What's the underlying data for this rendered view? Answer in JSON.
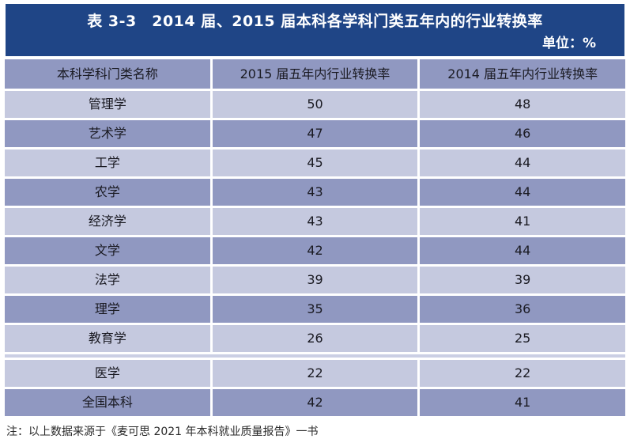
{
  "title_bar": {
    "title": "表 3-3　2014 届、2015 届本科各学科门类五年内的行业转换率",
    "unit": "单位：%"
  },
  "table": {
    "headers": [
      "本科学科门类名称",
      "2015 届五年内行业转换率",
      "2014 届五年内行业转换率"
    ],
    "rows": [
      {
        "category": "管理学",
        "rate_2015": "50",
        "rate_2014": "48"
      },
      {
        "category": "艺术学",
        "rate_2015": "47",
        "rate_2014": "46"
      },
      {
        "category": "工学",
        "rate_2015": "45",
        "rate_2014": "44"
      },
      {
        "category": "农学",
        "rate_2015": "43",
        "rate_2014": "44"
      },
      {
        "category": "经济学",
        "rate_2015": "43",
        "rate_2014": "41"
      },
      {
        "category": "文学",
        "rate_2015": "42",
        "rate_2014": "44"
      },
      {
        "category": "法学",
        "rate_2015": "39",
        "rate_2014": "39"
      },
      {
        "category": "理学",
        "rate_2015": "35",
        "rate_2014": "36"
      },
      {
        "category": "教育学",
        "rate_2015": "26",
        "rate_2014": "25"
      },
      {
        "category": "医学",
        "rate_2015": "22",
        "rate_2014": "22"
      },
      {
        "category": "全国本科",
        "rate_2015": "42",
        "rate_2014": "41"
      }
    ]
  },
  "footnote": "注：以上数据来源于《麦可思 2021 年本科就业质量报告》一书",
  "colors": {
    "title_bg": "#1f4586",
    "header_bg": "#9098c1",
    "row_dark": "#9098c1",
    "row_light": "#c5c9df",
    "divider_strip": "#cbcfe4"
  },
  "chart_data": {
    "type": "table",
    "title": "表 3-3　2014 届、2015 届本科各学科门类五年内的行业转换率",
    "unit": "%",
    "columns": [
      "本科学科门类名称",
      "2015 届五年内行业转换率",
      "2014 届五年内行业转换率"
    ],
    "categories": [
      "管理学",
      "艺术学",
      "工学",
      "农学",
      "经济学",
      "文学",
      "法学",
      "理学",
      "教育学",
      "医学",
      "全国本科"
    ],
    "series": [
      {
        "name": "2015 届五年内行业转换率",
        "values": [
          50,
          47,
          45,
          43,
          43,
          42,
          39,
          35,
          26,
          22,
          42
        ]
      },
      {
        "name": "2014 届五年内行业转换率",
        "values": [
          48,
          46,
          44,
          44,
          41,
          44,
          39,
          36,
          25,
          22,
          41
        ]
      }
    ],
    "note": "注：以上数据来源于《麦可思 2021 年本科就业质量报告》一书"
  }
}
